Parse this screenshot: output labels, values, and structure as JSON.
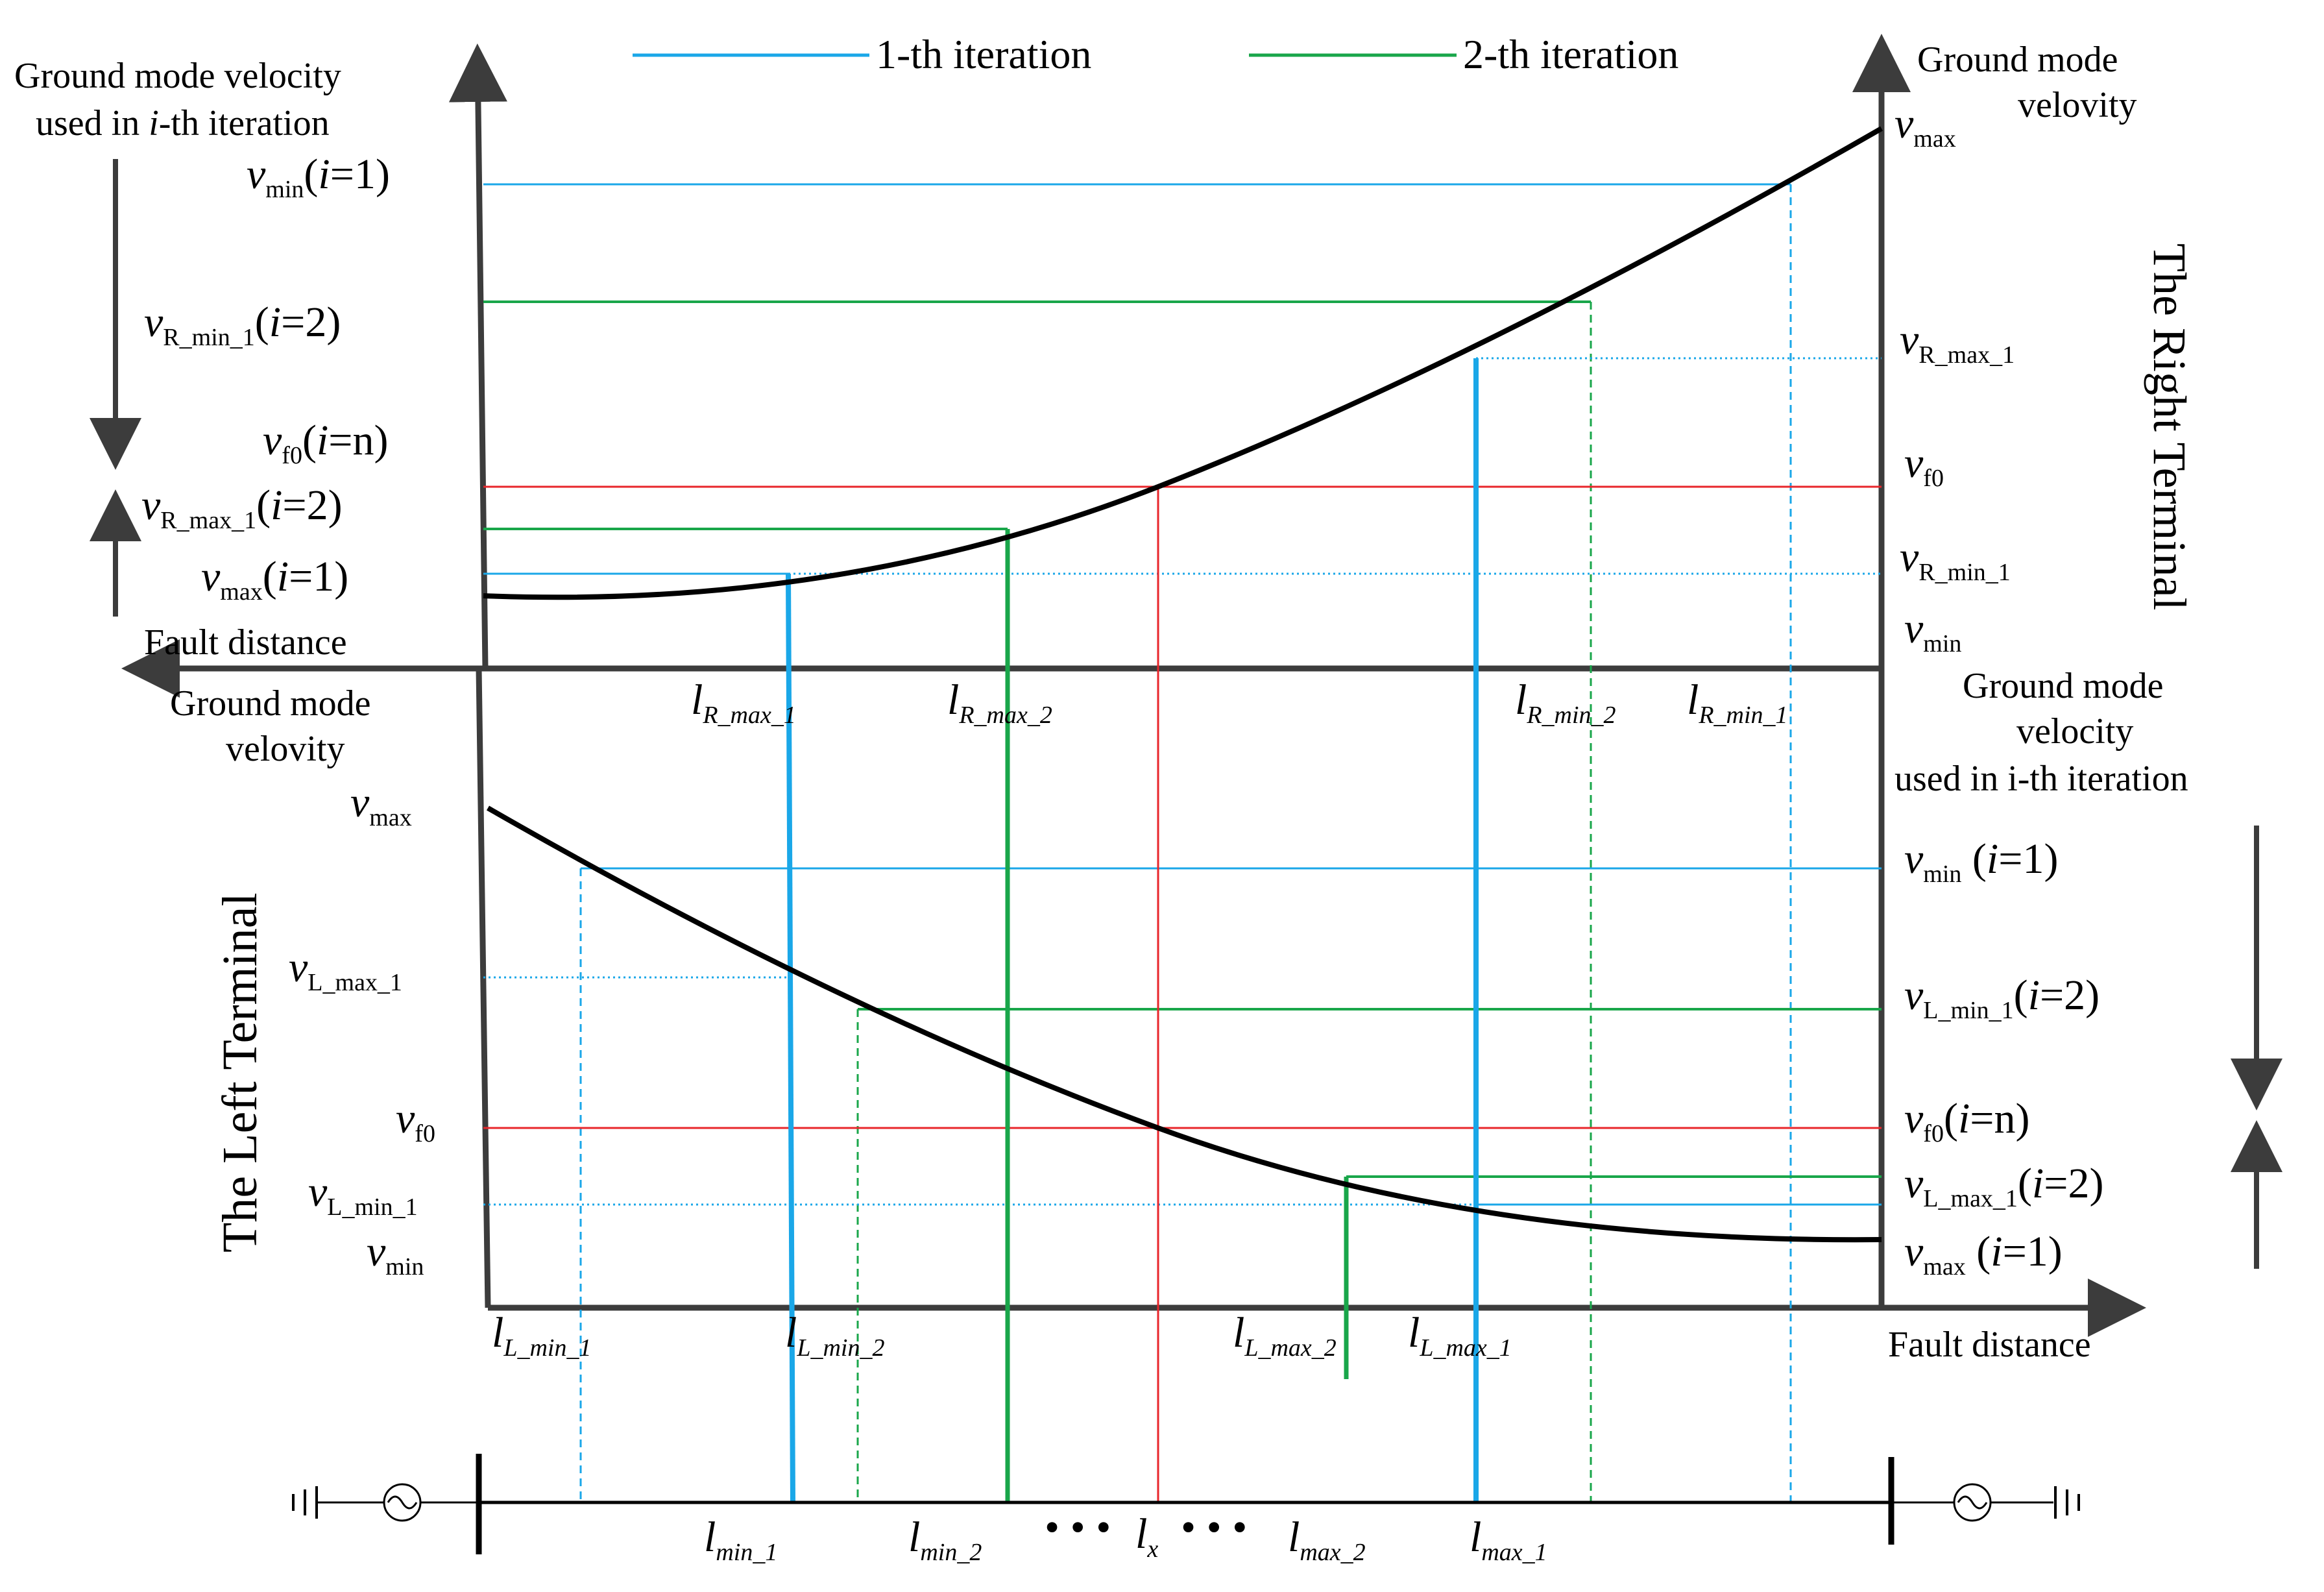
{
  "legend": {
    "iter1": "1-th iteration",
    "iter2": "2-th iteration"
  },
  "colors": {
    "iter1": "#1aa7e8",
    "iter2": "#19a64a",
    "fault": "#e8262b",
    "axis": "#3c3c3c",
    "curve": "#000000"
  },
  "top": {
    "left_title_line1": "Ground mode velocity",
    "left_title_line2_pre": "used in ",
    "left_title_line2_i": "i",
    "left_title_line2_post": "-th iteration",
    "right_title_line1": "Ground mode",
    "right_title_line2": "velovity",
    "axis_label": "Fault distance",
    "terminal": "The Right Terminal",
    "left_labels": [
      {
        "v": "v",
        "sub": "min",
        "paren": "(",
        "i": "i",
        "rest": "=1)"
      },
      {
        "v": "v",
        "sub": "R_min_1",
        "paren": "(",
        "i": "i",
        "rest": "=2)"
      },
      {
        "v": "v",
        "sub": "f0",
        "paren": "(",
        "i": "i",
        "rest": "=n)"
      },
      {
        "v": "v",
        "sub": "R_max_1",
        "paren": "(",
        "i": "i",
        "rest": "=2)"
      },
      {
        "v": "v",
        "sub": "max",
        "paren": "(",
        "i": "i",
        "rest": "=1)"
      }
    ],
    "right_labels": [
      {
        "v": "v",
        "sub": "max"
      },
      {
        "v": "v",
        "sub": "R_max_1"
      },
      {
        "v": "v",
        "sub": "f0"
      },
      {
        "v": "v",
        "sub": "R_min_1"
      },
      {
        "v": "v",
        "sub": "min"
      }
    ],
    "distance_labels": [
      {
        "l": "l",
        "sub": "R_max_1"
      },
      {
        "l": "l",
        "sub": "R_max_2"
      },
      {
        "l": "l",
        "sub": "R_min_2"
      },
      {
        "l": "l",
        "sub": "R_min_1"
      }
    ]
  },
  "bottom": {
    "left_title_line1": "Ground mode",
    "left_title_line2": "velovity",
    "right_title_line1": "Ground mode",
    "right_title_line2": "velocity",
    "right_title_line3": "used in i-th iteration",
    "axis_label": "Fault distance",
    "terminal": "The Left Terminal",
    "left_labels": [
      {
        "v": "v",
        "sub": "max"
      },
      {
        "v": "v",
        "sub": "L_max_1"
      },
      {
        "v": "v",
        "sub": "f0"
      },
      {
        "v": "v",
        "sub": "L_min_1"
      },
      {
        "v": "v",
        "sub": "min"
      }
    ],
    "right_labels": [
      {
        "v": "v",
        "sub": "min",
        "paren": " (",
        "i": "i",
        "rest": "=1)"
      },
      {
        "v": "v",
        "sub": "L_min_1",
        "paren": "(",
        "i": "i",
        "rest": "=2)"
      },
      {
        "v": "v",
        "sub": "f0",
        "paren": "(",
        "i": "i",
        "rest": "=n)"
      },
      {
        "v": "v",
        "sub": "L_max_1",
        "paren": "(",
        "i": "i",
        "rest": "=2)"
      },
      {
        "v": "v",
        "sub": "max",
        "paren": " (",
        "i": "i",
        "rest": "=1)"
      }
    ],
    "distance_labels": [
      {
        "l": "l",
        "sub": "L_min_1"
      },
      {
        "l": "l",
        "sub": "L_min_2"
      },
      {
        "l": "l",
        "sub": "L_max_2"
      },
      {
        "l": "l",
        "sub": "L_max_1"
      }
    ]
  },
  "line": {
    "labels": [
      {
        "l": "l",
        "sub": "min_1"
      },
      {
        "l": "l",
        "sub": "min_2"
      },
      {
        "l": "l",
        "sub": "x"
      },
      {
        "l": "l",
        "sub": "max_2"
      },
      {
        "l": "l",
        "sub": "max_1"
      }
    ],
    "dots_left": "• • •",
    "dots_right": "• • •"
  }
}
